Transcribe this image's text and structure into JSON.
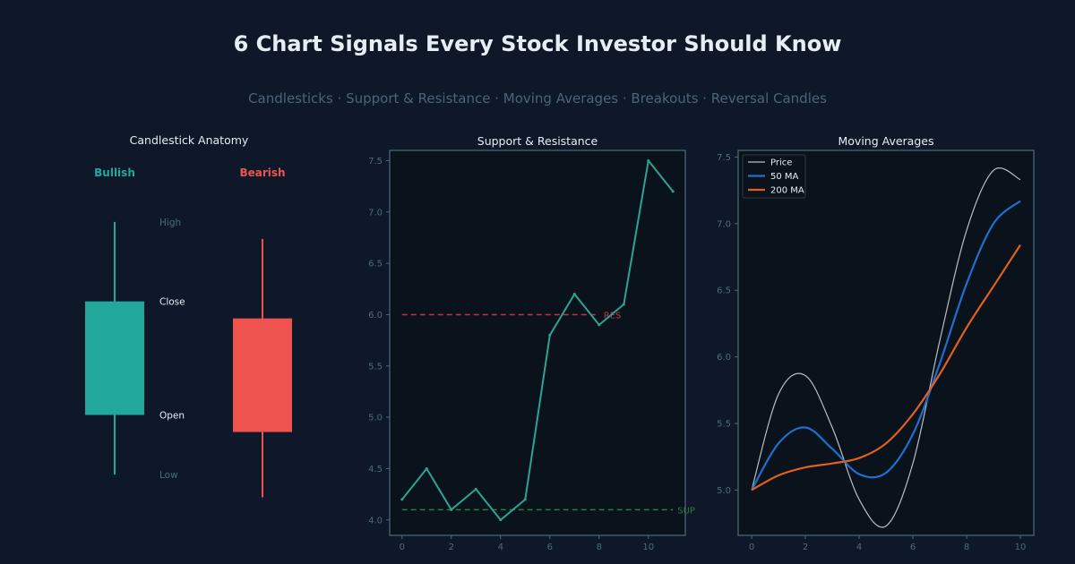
{
  "header": {
    "title": "6 Chart Signals Every Stock Investor Should Know",
    "subtitle": "Candlesticks · Support & Resistance · Moving Averages · Breakouts · Reversal Candles"
  },
  "colors": {
    "background": "#0e1828",
    "plot_bg": "#0a121c",
    "axis": "#4f6b7a",
    "tick_text": "#4f6b7a",
    "title_text": "#e6edf5",
    "bullish": "#22a89a",
    "bearish": "#ef5350",
    "price_line": "#2ea394",
    "resistance": "#c0344a",
    "support": "#2e7d3a",
    "ma_price": "#b8bec4",
    "ma_50": "#1f6fce",
    "ma_200": "#e2601f"
  },
  "chart_data": [
    {
      "type": "candlestick-diagram",
      "title": "Candlestick Anatomy",
      "candles": [
        {
          "name": "Bullish",
          "color": "#22a89a",
          "high": 10.0,
          "open": 3.2,
          "close": 7.2,
          "low": 1.1
        },
        {
          "name": "Bearish",
          "color": "#ef5350",
          "high": 9.4,
          "open": 6.6,
          "close": 2.6,
          "low": 0.3
        }
      ],
      "labels": {
        "high": "High",
        "close": "Close",
        "open": "Open",
        "low": "Low"
      },
      "ylim": [
        0,
        10.5
      ]
    },
    {
      "type": "line",
      "title": "Support & Resistance",
      "x": [
        0,
        1,
        2,
        3,
        4,
        5,
        6,
        7,
        8,
        9,
        10,
        11
      ],
      "series": [
        {
          "values": [
            4.2,
            4.5,
            4.1,
            4.3,
            4.0,
            4.2,
            5.8,
            6.2,
            5.9,
            6.1,
            7.5,
            7.2
          ]
        }
      ],
      "levels": [
        {
          "label": "RES",
          "value": 6.0,
          "x_end": 8,
          "color": "#c0344a"
        },
        {
          "label": "SUP",
          "value": 4.1,
          "x_end": 11,
          "color": "#2e7d3a"
        }
      ],
      "xlim": [
        -0.5,
        11.5
      ],
      "ylim": [
        3.85,
        7.6
      ],
      "xticks": [
        0,
        2,
        4,
        6,
        8,
        10
      ],
      "yticks": [
        4.0,
        4.5,
        5.0,
        5.5,
        6.0,
        6.5,
        7.0,
        7.5
      ],
      "xlabel": "",
      "ylabel": "",
      "grid": false
    },
    {
      "type": "line",
      "title": "Moving Averages",
      "x": [
        0,
        1,
        2,
        3,
        4,
        5,
        6,
        7,
        8,
        9,
        10
      ],
      "series": [
        {
          "name": "Price",
          "color": "#b8bec4",
          "width": 1.2,
          "values": [
            5.0,
            5.72,
            5.86,
            5.47,
            4.93,
            4.73,
            5.2,
            6.12,
            6.95,
            7.4,
            7.33
          ]
        },
        {
          "name": "50 MA",
          "color": "#1f6fce",
          "width": 2.2,
          "values": [
            5.0,
            5.35,
            5.47,
            5.31,
            5.12,
            5.13,
            5.42,
            5.95,
            6.55,
            7.0,
            7.17
          ]
        },
        {
          "name": "200 MA",
          "color": "#e2601f",
          "width": 2.2,
          "values": [
            5.0,
            5.11,
            5.17,
            5.2,
            5.24,
            5.35,
            5.57,
            5.87,
            6.22,
            6.53,
            6.84
          ]
        }
      ],
      "xlim": [
        -0.5,
        10.5
      ],
      "ylim": [
        4.66,
        7.55
      ],
      "xticks": [
        0,
        2,
        4,
        6,
        8,
        10
      ],
      "yticks": [
        5.0,
        5.5,
        6.0,
        6.5,
        7.0,
        7.5
      ],
      "legend": "top-left",
      "xlabel": "",
      "ylabel": "",
      "grid": false
    }
  ]
}
